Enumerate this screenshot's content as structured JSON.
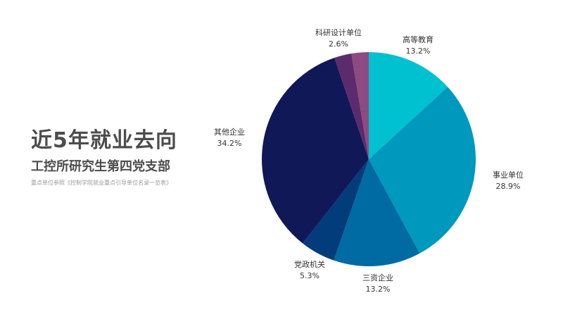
{
  "header": {
    "title": "近5年就业去向",
    "subtitle": "工控所研究生第四党支部",
    "note": "重点单位参照《控制学院就业重点引导单位名录一览表》"
  },
  "chart_data": {
    "type": "pie",
    "slices": [
      {
        "label": "高等教育",
        "value": 13.2,
        "display": "13.2%",
        "color": "#00c1cf"
      },
      {
        "label": "事业单位",
        "value": 28.9,
        "display": "28.9%",
        "color": "#0099be"
      },
      {
        "label": "三资企业",
        "value": 13.2,
        "display": "13.2%",
        "color": "#006aa3"
      },
      {
        "label": "党政机关",
        "value": 5.3,
        "display": "5.3%",
        "color": "#023c7a"
      },
      {
        "label": "其他企业",
        "value": 34.2,
        "display": "34.2%",
        "color": "#111858"
      },
      {
        "label": "",
        "value": 2.6,
        "display": "",
        "color": "#5c2b6d"
      },
      {
        "label": "科研设计单位",
        "value": 2.6,
        "display": "2.6%",
        "color": "#8e4a82"
      }
    ]
  }
}
